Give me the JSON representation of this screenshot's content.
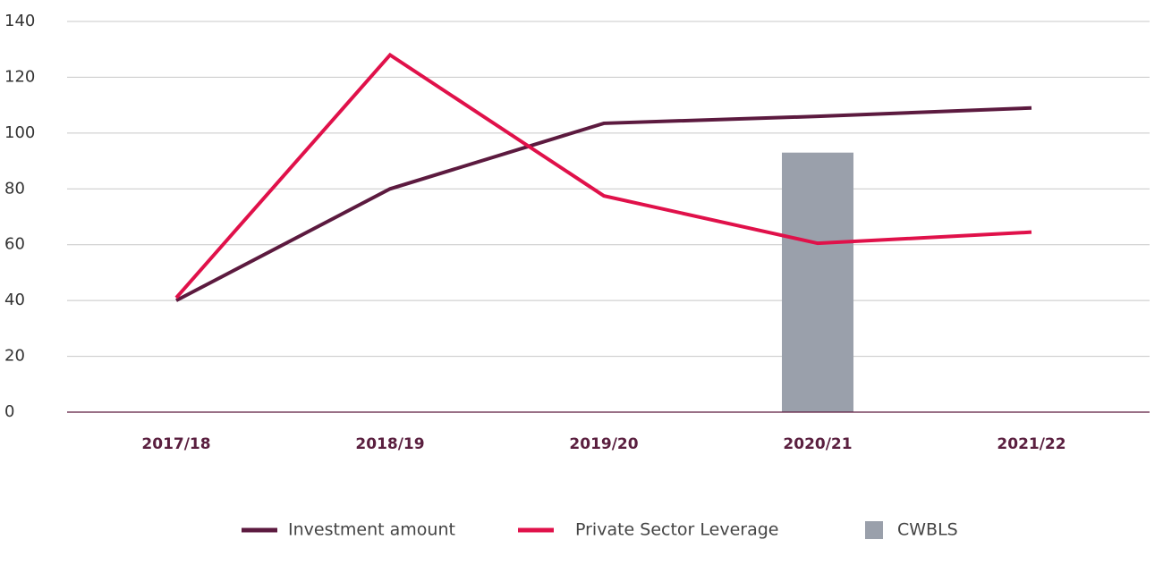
{
  "chart_data": {
    "type": "line",
    "categories": [
      "2017/18",
      "2018/19",
      "2019/20",
      "2020/21",
      "2021/22"
    ],
    "series": [
      {
        "name": "Investment amount",
        "color": "#5c1a3f",
        "type": "line",
        "values": [
          40,
          80,
          103.5,
          106,
          109
        ]
      },
      {
        "name": "Private Sector Leverage",
        "color": "#e0114a",
        "type": "line",
        "values": [
          41,
          128,
          77.5,
          60.5,
          64.5
        ]
      },
      {
        "name": "CWBLS",
        "color": "#9aa0ab",
        "type": "bar",
        "values": [
          null,
          null,
          null,
          93,
          null
        ]
      }
    ],
    "ylim": [
      0,
      140
    ],
    "yticks": [
      0,
      20,
      40,
      60,
      80,
      100,
      120,
      140
    ],
    "grid": true
  }
}
